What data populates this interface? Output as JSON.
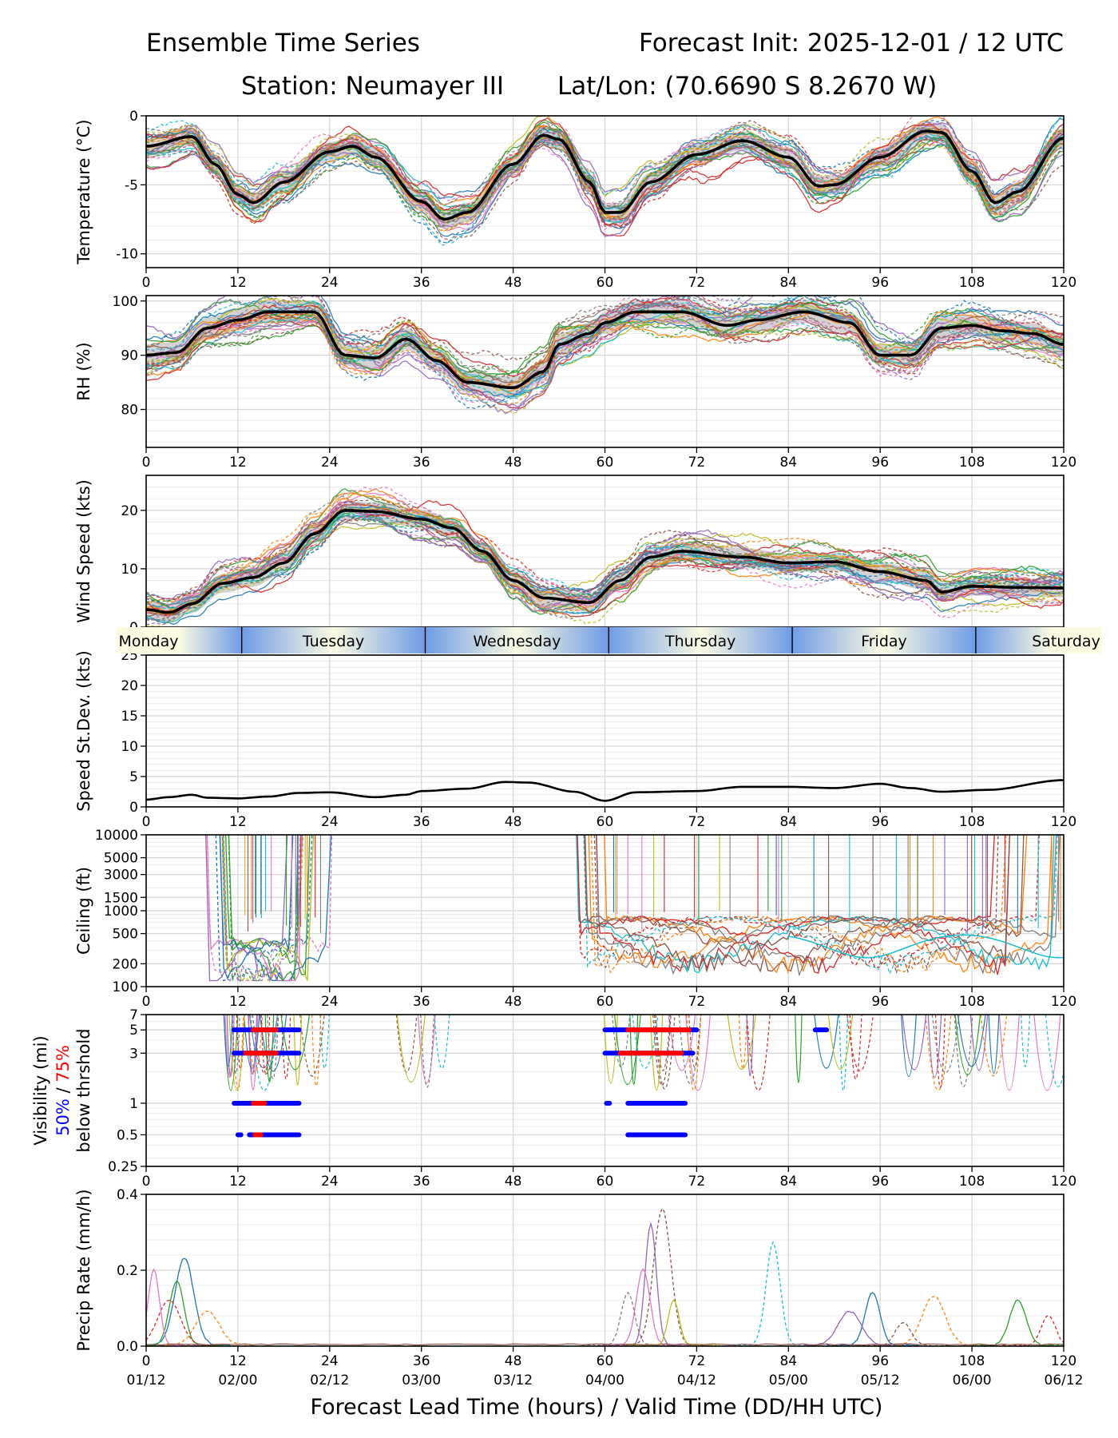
{
  "header": {
    "title_left": "Ensemble Time Series",
    "title_right": "Forecast Init: 2025-12-01 / 12 UTC",
    "station": "Station: Neumayer III",
    "latlon": "Lat/Lon: (70.6690 S 8.2670 W)"
  },
  "x_axis": {
    "ticks": [
      0,
      12,
      24,
      36,
      48,
      60,
      72,
      84,
      96,
      108,
      120
    ],
    "valid_time_labels": [
      "01/12",
      "02/00",
      "02/12",
      "03/00",
      "03/12",
      "04/00",
      "04/12",
      "05/00",
      "05/12",
      "06/00",
      "06/12"
    ],
    "xlabel": "Forecast Lead Time (hours) / Valid Time (DD/HH UTC)",
    "xlim": [
      0,
      120
    ]
  },
  "day_band": {
    "days": [
      "Monday",
      "Tuesday",
      "Wednesday",
      "Thursday",
      "Friday",
      "Saturday"
    ],
    "boundaries_hours": [
      12.5,
      36.5,
      60.5,
      84.5,
      108.5
    ]
  },
  "colors": {
    "ensemble_mean": "#000000",
    "spread": "#c8c8c8",
    "band_blue": "#6f9ce6",
    "band_light": "#fbfbe2",
    "vis_50": "#0000ff",
    "vis_75": "#ff0000",
    "members": [
      "#1f77b4",
      "#ff7f0e",
      "#2ca02c",
      "#d62728",
      "#9467bd",
      "#8c564b",
      "#e377c2",
      "#7f7f7f",
      "#bcbd22",
      "#17becf"
    ]
  },
  "chart_data": [
    {
      "type": "line",
      "name": "temperature",
      "ylabel": "Temperature (°C)",
      "ylim": [
        -11,
        0
      ],
      "yticks": [
        0,
        -5,
        -10
      ],
      "ytick_labels": [
        "0",
        "-5",
        "-10"
      ],
      "mean": [
        [
          0,
          -2.2
        ],
        [
          6,
          -1.5
        ],
        [
          9,
          -3.5
        ],
        [
          12,
          -5.7
        ],
        [
          14,
          -6.3
        ],
        [
          18,
          -4.8
        ],
        [
          24,
          -2.6
        ],
        [
          27,
          -2.2
        ],
        [
          30,
          -3.0
        ],
        [
          36,
          -6.2
        ],
        [
          39,
          -7.5
        ],
        [
          42,
          -7.0
        ],
        [
          48,
          -3.5
        ],
        [
          52,
          -1.4
        ],
        [
          54,
          -1.7
        ],
        [
          58,
          -4.8
        ],
        [
          60,
          -7.0
        ],
        [
          62,
          -7.0
        ],
        [
          66,
          -4.8
        ],
        [
          72,
          -2.8
        ],
        [
          78,
          -1.8
        ],
        [
          84,
          -3.0
        ],
        [
          88,
          -5.1
        ],
        [
          90,
          -5.0
        ],
        [
          96,
          -3.0
        ],
        [
          102,
          -1.1
        ],
        [
          104,
          -1.2
        ],
        [
          108,
          -4.0
        ],
        [
          111,
          -6.3
        ],
        [
          114,
          -5.5
        ],
        [
          120,
          -1.6
        ]
      ],
      "spread_halfwidth": 0.7
    },
    {
      "type": "line",
      "name": "relative_humidity",
      "ylabel": "RH (%)",
      "ylim": [
        73,
        101
      ],
      "yticks": [
        80,
        90,
        100
      ],
      "ytick_labels": [
        "80",
        "90",
        "100"
      ],
      "mean": [
        [
          0,
          90
        ],
        [
          4,
          90.5
        ],
        [
          8,
          95
        ],
        [
          12,
          96.5
        ],
        [
          16,
          98
        ],
        [
          22,
          98
        ],
        [
          26,
          90
        ],
        [
          30,
          89.5
        ],
        [
          34,
          93
        ],
        [
          38,
          89
        ],
        [
          42,
          85
        ],
        [
          48,
          84
        ],
        [
          52,
          87
        ],
        [
          54,
          92
        ],
        [
          58,
          94
        ],
        [
          60,
          96
        ],
        [
          64,
          98
        ],
        [
          70,
          98
        ],
        [
          76,
          95.5
        ],
        [
          80,
          96.5
        ],
        [
          86,
          98
        ],
        [
          92,
          96
        ],
        [
          96,
          90
        ],
        [
          100,
          90
        ],
        [
          104,
          95
        ],
        [
          108,
          95.5
        ],
        [
          112,
          94.5
        ],
        [
          116,
          94
        ],
        [
          120,
          92
        ]
      ],
      "spread_halfwidth": 2.0
    },
    {
      "type": "line",
      "name": "wind_speed",
      "ylabel": "Wind Speed (kts)",
      "ylim": [
        0,
        26
      ],
      "yticks": [
        0,
        10,
        20
      ],
      "ytick_labels": [
        "0",
        "10",
        "20"
      ],
      "mean": [
        [
          0,
          3.0
        ],
        [
          3,
          2.5
        ],
        [
          6,
          4.0
        ],
        [
          10,
          7.5
        ],
        [
          14,
          8.5
        ],
        [
          18,
          11
        ],
        [
          22,
          16
        ],
        [
          26,
          20
        ],
        [
          30,
          19.8
        ],
        [
          36,
          18.5
        ],
        [
          40,
          17
        ],
        [
          44,
          13
        ],
        [
          48,
          8
        ],
        [
          52,
          5
        ],
        [
          58,
          4.2
        ],
        [
          62,
          8
        ],
        [
          66,
          12
        ],
        [
          70,
          13
        ],
        [
          78,
          12
        ],
        [
          84,
          11
        ],
        [
          90,
          11.2
        ],
        [
          96,
          9.5
        ],
        [
          102,
          8
        ],
        [
          104,
          6
        ],
        [
          108,
          7
        ],
        [
          114,
          6.8
        ],
        [
          120,
          6.7
        ]
      ],
      "spread_halfwidth": 1.6
    },
    {
      "type": "line",
      "name": "speed_stdev",
      "ylabel": "Speed St.Dev. (kts)",
      "ylim": [
        0,
        25
      ],
      "yticks": [
        0,
        5,
        10,
        15,
        20,
        25
      ],
      "ytick_labels": [
        "0",
        "5",
        "10",
        "15",
        "20",
        "25"
      ],
      "mean": [
        [
          0,
          1.2
        ],
        [
          3,
          1.6
        ],
        [
          6,
          2.0
        ],
        [
          8,
          1.5
        ],
        [
          12,
          1.4
        ],
        [
          16,
          1.7
        ],
        [
          20,
          2.3
        ],
        [
          24,
          2.4
        ],
        [
          30,
          1.6
        ],
        [
          34,
          2.0
        ],
        [
          36,
          2.6
        ],
        [
          42,
          3.0
        ],
        [
          47,
          4.1
        ],
        [
          50,
          4.0
        ],
        [
          56,
          2.5
        ],
        [
          60,
          1.0
        ],
        [
          64,
          2.4
        ],
        [
          72,
          2.6
        ],
        [
          78,
          3.3
        ],
        [
          84,
          3.3
        ],
        [
          90,
          3.1
        ],
        [
          96,
          3.8
        ],
        [
          100,
          3.1
        ],
        [
          104,
          2.5
        ],
        [
          110,
          2.8
        ],
        [
          120,
          4.4
        ]
      ]
    },
    {
      "type": "line",
      "name": "ceiling",
      "ylabel": "Ceiling (ft)",
      "yscale": "log",
      "ylim": [
        100,
        10000
      ],
      "yticks": [
        100,
        200,
        500,
        1000,
        1500,
        3000,
        5000,
        10000
      ],
      "ytick_labels": [
        "100",
        "200",
        "500",
        "1000",
        "1500",
        "3000",
        "5000",
        "10000"
      ]
    },
    {
      "type": "line",
      "name": "visibility",
      "ylabel": "Visibility (mi)",
      "legend_blue": "50%",
      "legend_sep": "/",
      "legend_red": "75%",
      "legend_suffix": "below thrshold",
      "yscale": "log",
      "ylim": [
        0.25,
        7
      ],
      "yticks": [
        0.25,
        0.5,
        1,
        3,
        5,
        7
      ],
      "ytick_labels": [
        "0.25",
        "0.5",
        "1",
        "3",
        "5",
        "7"
      ],
      "threshold_segments": [
        {
          "level": 5,
          "p50": [
            [
              11.5,
              20
            ]
          ],
          "p75": [
            [
              14,
              17
            ]
          ]
        },
        {
          "level": 3,
          "p50": [
            [
              11.5,
              20
            ]
          ],
          "p75": [
            [
              13,
              17
            ]
          ]
        },
        {
          "level": 1,
          "p50": [
            [
              11.5,
              20
            ]
          ],
          "p75": [
            [
              14,
              15.5
            ]
          ]
        },
        {
          "level": 0.5,
          "p50": [
            [
              12,
              12.4
            ],
            [
              13.5,
              20
            ]
          ],
          "p75": [
            [
              14.2,
              15
            ]
          ]
        },
        {
          "level": 5,
          "p50": [
            [
              60,
              72
            ]
          ],
          "p75": [
            [
              63,
              71
            ]
          ]
        },
        {
          "level": 3,
          "p50": [
            [
              60,
              71.5
            ]
          ],
          "p75": [
            [
              62,
              70
            ]
          ]
        },
        {
          "level": 1,
          "p50": [
            [
              60.2,
              60.6
            ],
            [
              63,
              70.5
            ]
          ],
          "p75": []
        },
        {
          "level": 0.5,
          "p50": [
            [
              63,
              70.5
            ]
          ],
          "p75": []
        },
        {
          "level": 5,
          "p50": [
            [
              87.5,
              89
            ]
          ],
          "p75": []
        }
      ]
    },
    {
      "type": "line",
      "name": "precip_rate",
      "ylabel": "Precip Rate (mm/h)",
      "ylim": [
        0,
        0.4
      ],
      "yticks": [
        0.0,
        0.2,
        0.4
      ],
      "ytick_labels": [
        "0.0",
        "0.2",
        "0.4"
      ]
    }
  ]
}
